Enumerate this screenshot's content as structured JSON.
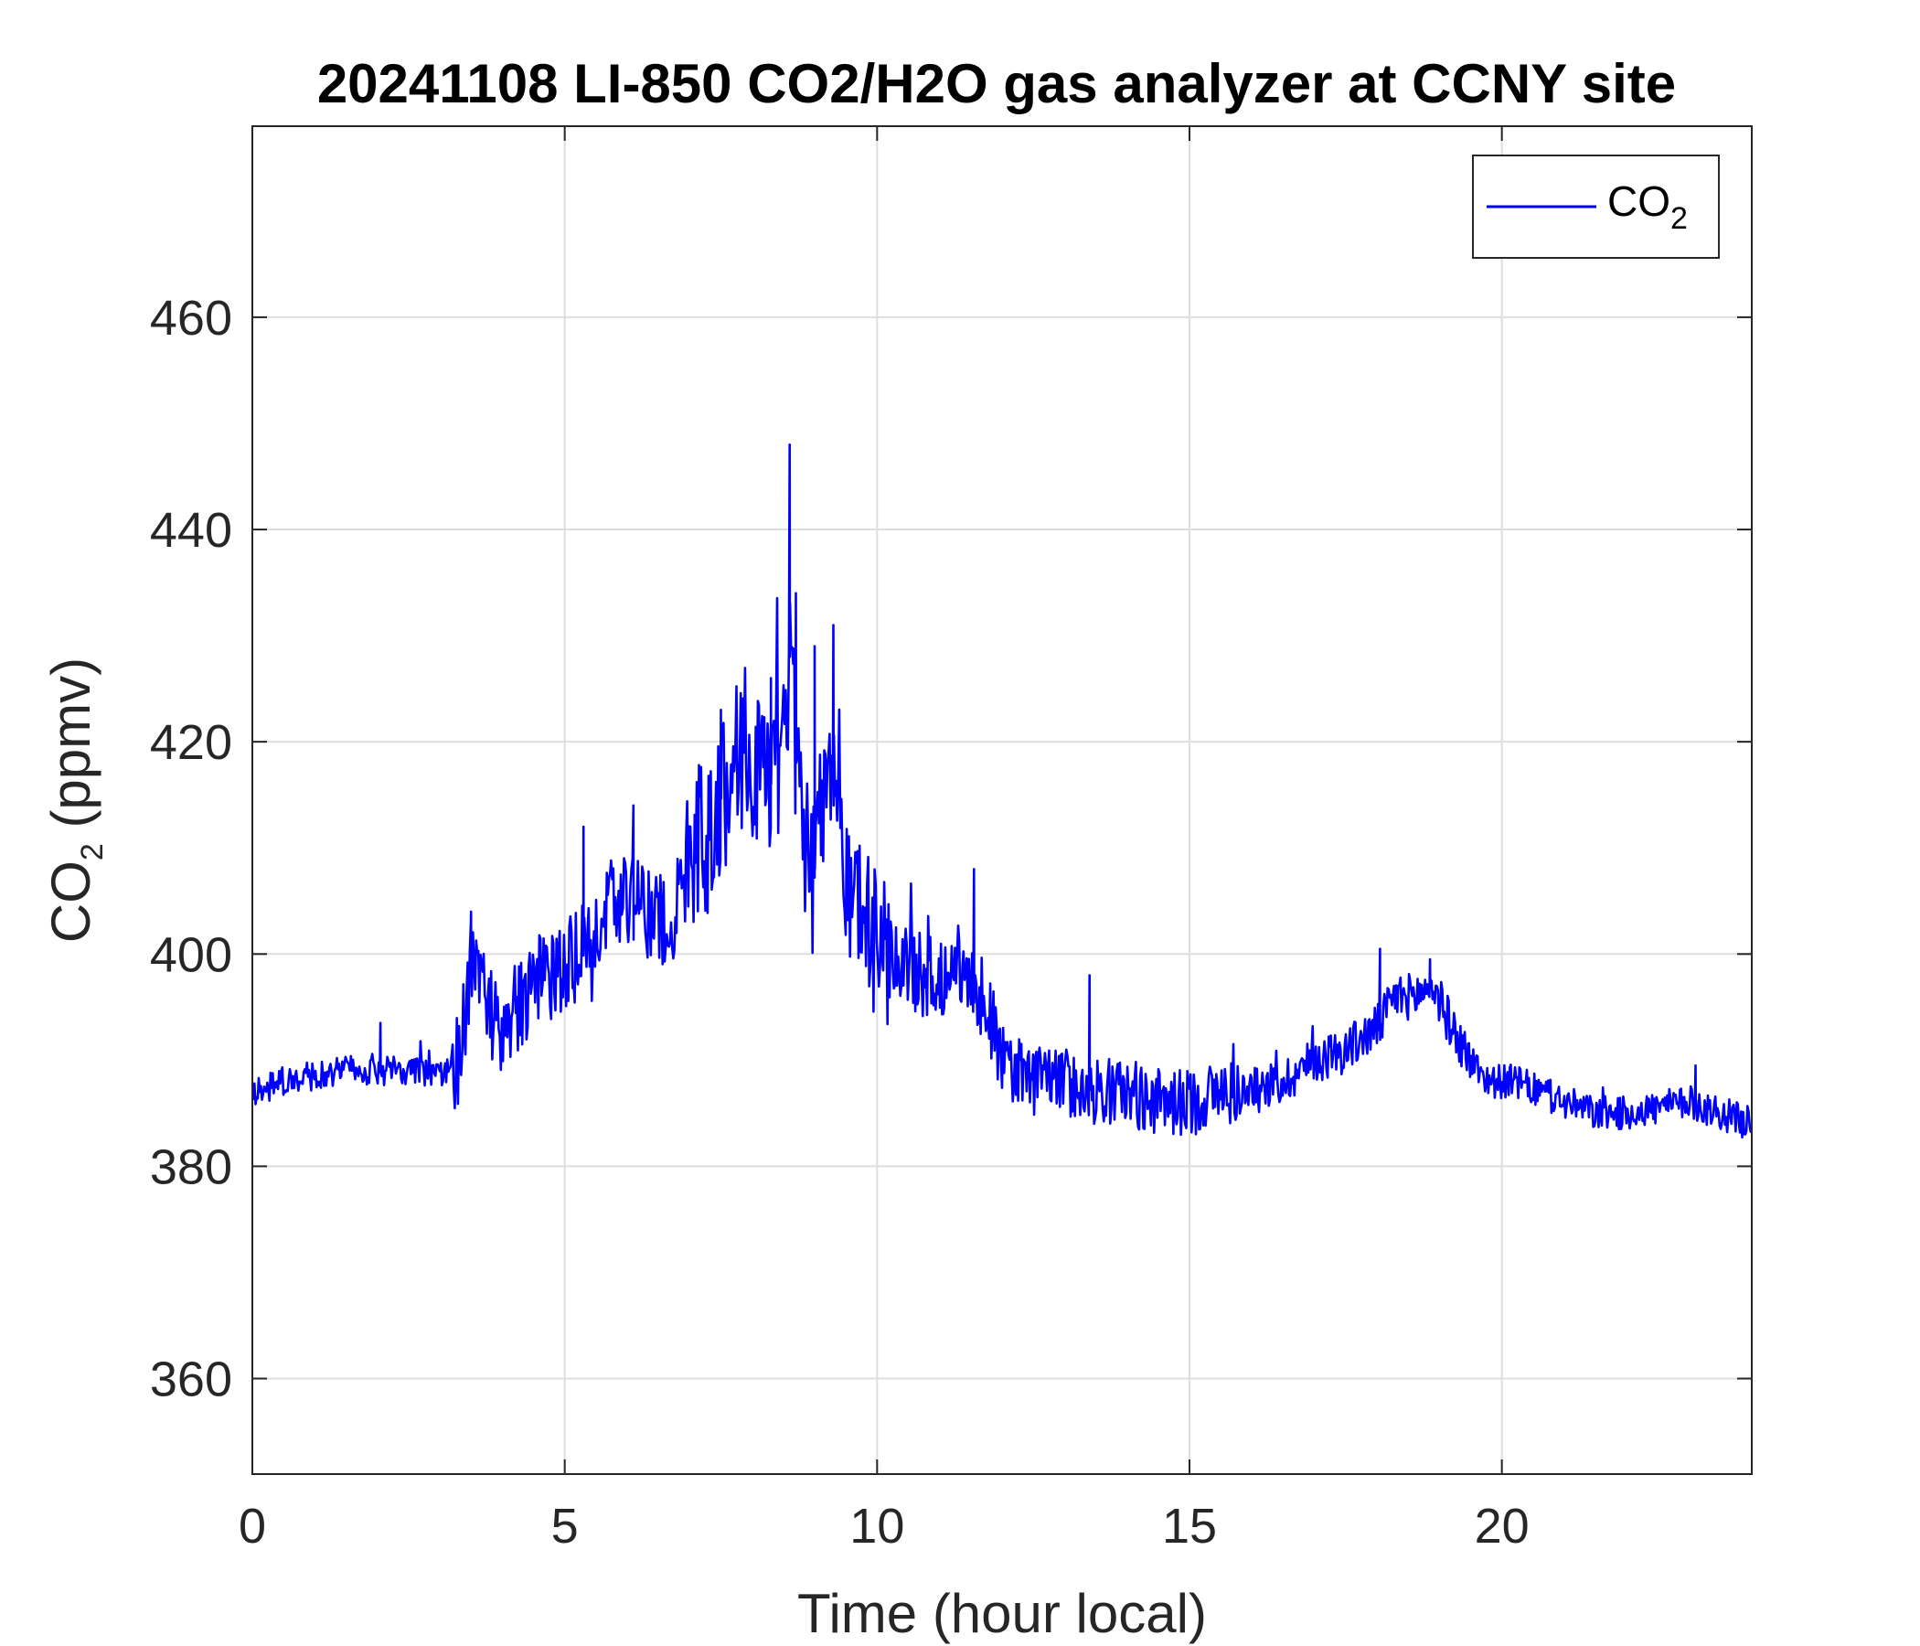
{
  "chart_data": {
    "type": "line",
    "title": "20241108 LI-850 CO2/H2O gas analyzer at CCNY site",
    "xlabel": "Time (hour local)",
    "ylabel": {
      "base": "CO",
      "subscript": "2",
      "suffix": " (ppmv)"
    },
    "xlim": [
      0,
      24
    ],
    "ylim": [
      351,
      478
    ],
    "xticks": [
      0,
      5,
      10,
      15,
      20
    ],
    "yticks": [
      360,
      380,
      400,
      420,
      440,
      460
    ],
    "grid": true,
    "legend": {
      "position": "top-right",
      "entries": [
        {
          "base": "CO",
          "subscript": "2"
        }
      ]
    },
    "series": [
      {
        "name": "CO2",
        "color": "#0000ff",
        "x": [
          0.0,
          0.5,
          1.0,
          1.5,
          2.0,
          2.5,
          3.0,
          3.3,
          3.5,
          3.7,
          3.9,
          4.2,
          4.5,
          4.8,
          5.0,
          5.3,
          5.6,
          6.0,
          6.3,
          6.7,
          7.0,
          7.3,
          7.6,
          7.9,
          8.2,
          8.5,
          8.6,
          8.8,
          9.0,
          9.2,
          9.4,
          9.7,
          10.0,
          10.3,
          10.7,
          11.0,
          11.4,
          11.7,
          12.0,
          12.5,
          13.0,
          13.5,
          14.0,
          14.5,
          15.0,
          15.5,
          16.0,
          16.5,
          17.0,
          17.5,
          18.0,
          18.3,
          18.6,
          18.9,
          19.2,
          19.5,
          19.8,
          20.2,
          20.6,
          21.0,
          21.5,
          22.0,
          22.5,
          23.0,
          23.5,
          24.0
        ],
        "y": [
          387,
          388,
          388.5,
          389,
          389,
          389,
          388.5,
          390,
          399,
          397,
          393,
          395,
          397,
          398,
          398.5,
          401,
          404,
          405,
          404,
          403,
          409,
          412,
          416,
          420,
          415,
          418,
          428,
          412,
          408,
          418,
          410,
          405,
          400,
          399,
          398,
          398,
          399,
          396,
          390,
          388,
          388,
          387,
          387,
          386,
          386,
          387,
          387,
          388,
          390,
          391,
          393,
          396,
          396,
          397,
          393,
          390,
          388,
          388,
          387,
          386,
          385,
          385,
          385.5,
          386,
          385,
          384
        ],
        "spikes": [
          {
            "x": 2.05,
            "y": 393.5
          },
          {
            "x": 3.5,
            "y": 404
          },
          {
            "x": 5.3,
            "y": 412
          },
          {
            "x": 6.1,
            "y": 414
          },
          {
            "x": 7.5,
            "y": 423
          },
          {
            "x": 8.3,
            "y": 426
          },
          {
            "x": 8.6,
            "y": 448
          },
          {
            "x": 8.7,
            "y": 434
          },
          {
            "x": 9.0,
            "y": 429
          },
          {
            "x": 9.3,
            "y": 431
          },
          {
            "x": 11.55,
            "y": 408
          },
          {
            "x": 13.4,
            "y": 398
          },
          {
            "x": 18.05,
            "y": 400.5
          },
          {
            "x": 18.85,
            "y": 399.5
          },
          {
            "x": 23.1,
            "y": 389.5
          }
        ]
      }
    ]
  }
}
